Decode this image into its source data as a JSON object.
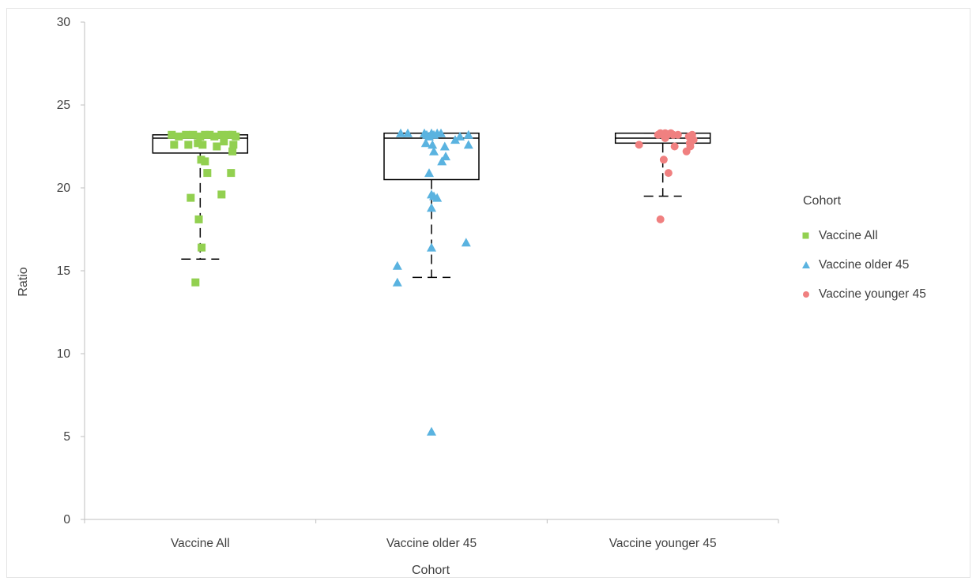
{
  "chart_data": {
    "type": "box-plot with jittered points",
    "xlabel": "Cohort",
    "ylabel": "Ratio",
    "ylim": [
      0,
      30
    ],
    "yticks": [
      0,
      5,
      10,
      15,
      20,
      25,
      30
    ],
    "categories": [
      "Vaccine All",
      "Vaccine older 45",
      "Vaccine younger 45"
    ],
    "grid": false,
    "legend": {
      "title": "Cohort",
      "placement": "right",
      "entries": [
        "Vaccine All",
        "Vaccine older 45",
        "Vaccine younger 45"
      ]
    },
    "boxes": [
      {
        "category": "Vaccine All",
        "whisker_low": 15.7,
        "q1": 22.1,
        "median": 23.0,
        "q3": 23.2,
        "whisker_high": 23.2
      },
      {
        "category": "Vaccine older 45",
        "whisker_low": 14.6,
        "q1": 20.5,
        "median": 23.0,
        "q3": 23.3,
        "whisker_high": 23.3
      },
      {
        "category": "Vaccine younger 45",
        "whisker_low": 19.5,
        "q1": 22.7,
        "median": 23.0,
        "q3": 23.3,
        "whisker_high": 23.3
      }
    ],
    "series": [
      {
        "name": "Vaccine All",
        "category": "Vaccine All",
        "marker": "square",
        "color": "#92d050",
        "y": [
          23.2,
          23.1,
          23.2,
          23.2,
          23.1,
          23.2,
          23.2,
          23.1,
          23.2,
          23.2,
          23.2,
          23.1,
          22.6,
          22.6,
          22.7,
          22.6,
          22.8,
          22.5,
          22.6,
          22.2,
          21.7,
          21.6,
          20.9,
          20.9,
          19.6,
          19.4,
          18.1,
          16.4,
          14.3
        ],
        "jitter": [
          -0.6,
          -0.45,
          -0.3,
          -0.15,
          0.0,
          0.1,
          0.2,
          0.3,
          0.45,
          0.6,
          0.68,
          0.75,
          -0.55,
          -0.25,
          -0.05,
          0.05,
          0.5,
          0.35,
          0.7,
          0.68,
          0.02,
          0.1,
          0.15,
          0.65,
          0.45,
          -0.2,
          -0.03,
          0.03,
          -0.1
        ]
      },
      {
        "name": "Vaccine older 45",
        "category": "Vaccine older 45",
        "marker": "triangle",
        "color": "#5ab3e0",
        "y": [
          23.3,
          23.3,
          23.3,
          23.3,
          23.2,
          23.3,
          23.3,
          23.2,
          23.2,
          23.1,
          22.9,
          23.1,
          22.7,
          22.6,
          22.5,
          22.6,
          22.2,
          21.9,
          21.6,
          20.9,
          19.6,
          19.5,
          19.4,
          18.8,
          16.7,
          16.4,
          15.3,
          14.3,
          5.3
        ],
        "jitter": [
          -0.65,
          -0.5,
          -0.15,
          0.0,
          0.05,
          0.12,
          0.2,
          -0.1,
          0.78,
          -0.05,
          0.5,
          0.6,
          -0.12,
          0.02,
          0.28,
          0.78,
          0.05,
          0.3,
          0.22,
          -0.05,
          0.0,
          0.05,
          0.12,
          0.0,
          0.73,
          0.0,
          -0.72,
          -0.72,
          0.0
        ]
      },
      {
        "name": "Vaccine younger 45",
        "category": "Vaccine younger 45",
        "marker": "circle",
        "color": "#f08080",
        "y": [
          23.2,
          23.3,
          23.2,
          23.3,
          23.2,
          23.3,
          23.2,
          23.2,
          23.1,
          23.2,
          23.0,
          22.9,
          22.8,
          22.7,
          22.6,
          22.5,
          22.5,
          22.2,
          21.7,
          20.9,
          18.1
        ],
        "jitter": [
          -0.1,
          -0.05,
          0.0,
          0.05,
          0.1,
          0.17,
          0.22,
          0.32,
          0.55,
          0.62,
          0.05,
          0.65,
          0.6,
          0.57,
          -0.5,
          0.25,
          0.58,
          0.5,
          0.02,
          0.12,
          -0.05
        ]
      }
    ]
  }
}
